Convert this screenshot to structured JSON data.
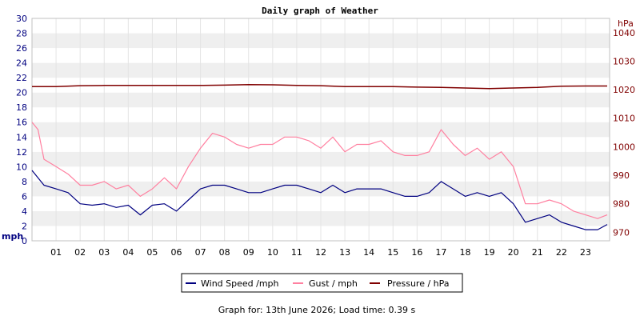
{
  "chart_data": {
    "type": "line",
    "title": "Daily graph of Weather",
    "left_axis": {
      "unit": "mph",
      "ylim": [
        0,
        30
      ],
      "ticks": [
        "0",
        "2",
        "4",
        "6",
        "8",
        "10",
        "12",
        "14",
        "16",
        "18",
        "20",
        "22",
        "24",
        "26",
        "28",
        "30"
      ],
      "color": "#000080"
    },
    "right_axis": {
      "unit": "hPa",
      "ylim": [
        967,
        1045
      ],
      "ticks": [
        "970",
        "980",
        "990",
        "1000",
        "1010",
        "1020",
        "1030",
        "1040"
      ],
      "color": "#800000"
    },
    "x_tick_labels": [
      "01",
      "02",
      "03",
      "04",
      "05",
      "06",
      "07",
      "08",
      "09",
      "10",
      "11",
      "12",
      "13",
      "14",
      "15",
      "16",
      "17",
      "18",
      "19",
      "20",
      "21",
      "22",
      "23"
    ],
    "xlim": [
      0,
      24
    ],
    "grid": "horizontal bands",
    "series": [
      {
        "name": "Wind Speed /mph",
        "axis": "left",
        "color": "#000080",
        "x": [
          0,
          0.25,
          0.5,
          1,
          1.5,
          2,
          2.5,
          3,
          3.5,
          4,
          4.5,
          5,
          5.5,
          6,
          6.5,
          7,
          7.5,
          8,
          8.5,
          9,
          9.5,
          10,
          10.5,
          11,
          11.5,
          12,
          12.5,
          13,
          13.5,
          14,
          14.5,
          15,
          15.5,
          16,
          16.5,
          17,
          17.5,
          18,
          18.5,
          19,
          19.5,
          20,
          20.5,
          21,
          21.5,
          22,
          22.5,
          23,
          23.5,
          23.9
        ],
        "values": [
          9.5,
          8.5,
          7.5,
          7,
          6.5,
          5,
          4.8,
          5,
          4.5,
          4.8,
          3.5,
          4.8,
          5,
          4,
          5.5,
          7,
          7.5,
          7.5,
          7,
          6.5,
          6.5,
          7,
          7.5,
          7.5,
          7,
          6.5,
          7.5,
          6.5,
          7,
          7,
          7,
          6.5,
          6,
          6,
          6.5,
          8,
          7,
          6,
          6.5,
          6,
          6.5,
          5,
          2.5,
          3,
          3.5,
          2.5,
          2,
          1.5,
          1.5,
          2.2
        ]
      },
      {
        "name": "Gust / mph",
        "axis": "left",
        "color": "#ff80a0",
        "x": [
          0,
          0.25,
          0.5,
          1,
          1.5,
          2,
          2.5,
          3,
          3.5,
          4,
          4.5,
          5,
          5.5,
          6,
          6.5,
          7,
          7.5,
          8,
          8.5,
          9,
          9.5,
          10,
          10.5,
          11,
          11.5,
          12,
          12.5,
          13,
          13.5,
          14,
          14.5,
          15,
          15.5,
          16,
          16.5,
          17,
          17.5,
          18,
          18.5,
          19,
          19.5,
          20,
          20.5,
          21,
          21.5,
          22,
          22.5,
          23,
          23.5,
          23.9
        ],
        "values": [
          16,
          15,
          11,
          10,
          9,
          7.5,
          7.5,
          8,
          7,
          7.5,
          6,
          7,
          8.5,
          7,
          10,
          12.5,
          14.5,
          14,
          13,
          12.5,
          13,
          13,
          14,
          14,
          13.5,
          12.5,
          14,
          12,
          13,
          13,
          13.5,
          12,
          11.5,
          11.5,
          12,
          15,
          13,
          11.5,
          12.5,
          11,
          12,
          10,
          5,
          5,
          5.5,
          5,
          4,
          3.5,
          3,
          3.5
        ]
      },
      {
        "name": "Pressure / hPa",
        "axis": "right",
        "color": "#800000",
        "x": [
          0,
          1,
          2,
          3,
          4,
          5,
          6,
          7,
          8,
          9,
          10,
          11,
          12,
          13,
          14,
          15,
          16,
          17,
          18,
          19,
          20,
          21,
          22,
          23,
          23.9
        ],
        "values": [
          1021.1,
          1021.1,
          1021.4,
          1021.5,
          1021.5,
          1021.5,
          1021.5,
          1021.5,
          1021.6,
          1021.8,
          1021.7,
          1021.5,
          1021.4,
          1021.1,
          1021.1,
          1021.1,
          1020.9,
          1020.8,
          1020.6,
          1020.4,
          1020.6,
          1020.8,
          1021.2,
          1021.3,
          1021.3
        ]
      }
    ],
    "footer": "Graph for: 13th June 2026; Load time: 0.39 s"
  }
}
